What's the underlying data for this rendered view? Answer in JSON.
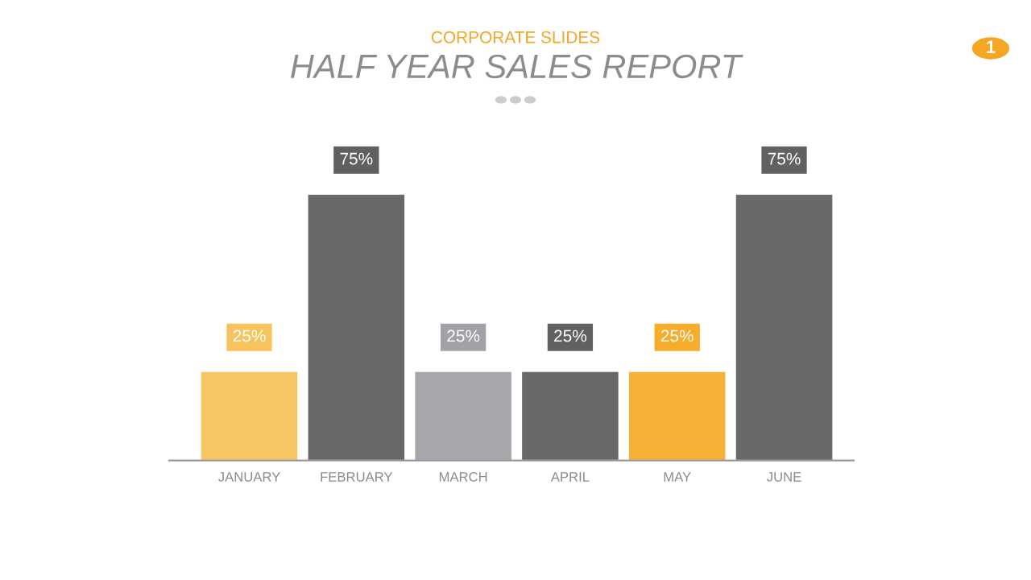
{
  "chart_data": {
    "type": "bar",
    "subtitle": "CORPORATE SLIDES",
    "title": "HALF YEAR SALES REPORT",
    "categories": [
      "JANUARY",
      "FEBRUARY",
      "MARCH",
      "APRIL",
      "MAY",
      "JUNE"
    ],
    "values": [
      25,
      75,
      25,
      25,
      25,
      75
    ],
    "value_labels": [
      "25%",
      "75%",
      "25%",
      "25%",
      "25%",
      "75%"
    ],
    "colors": [
      "#f7c35c",
      "#5f6060",
      "#a0a2a5",
      "#606262",
      "#f5ad2b",
      "#606161"
    ],
    "annotations": [
      "1"
    ],
    "grid": false,
    "legend": false
  }
}
